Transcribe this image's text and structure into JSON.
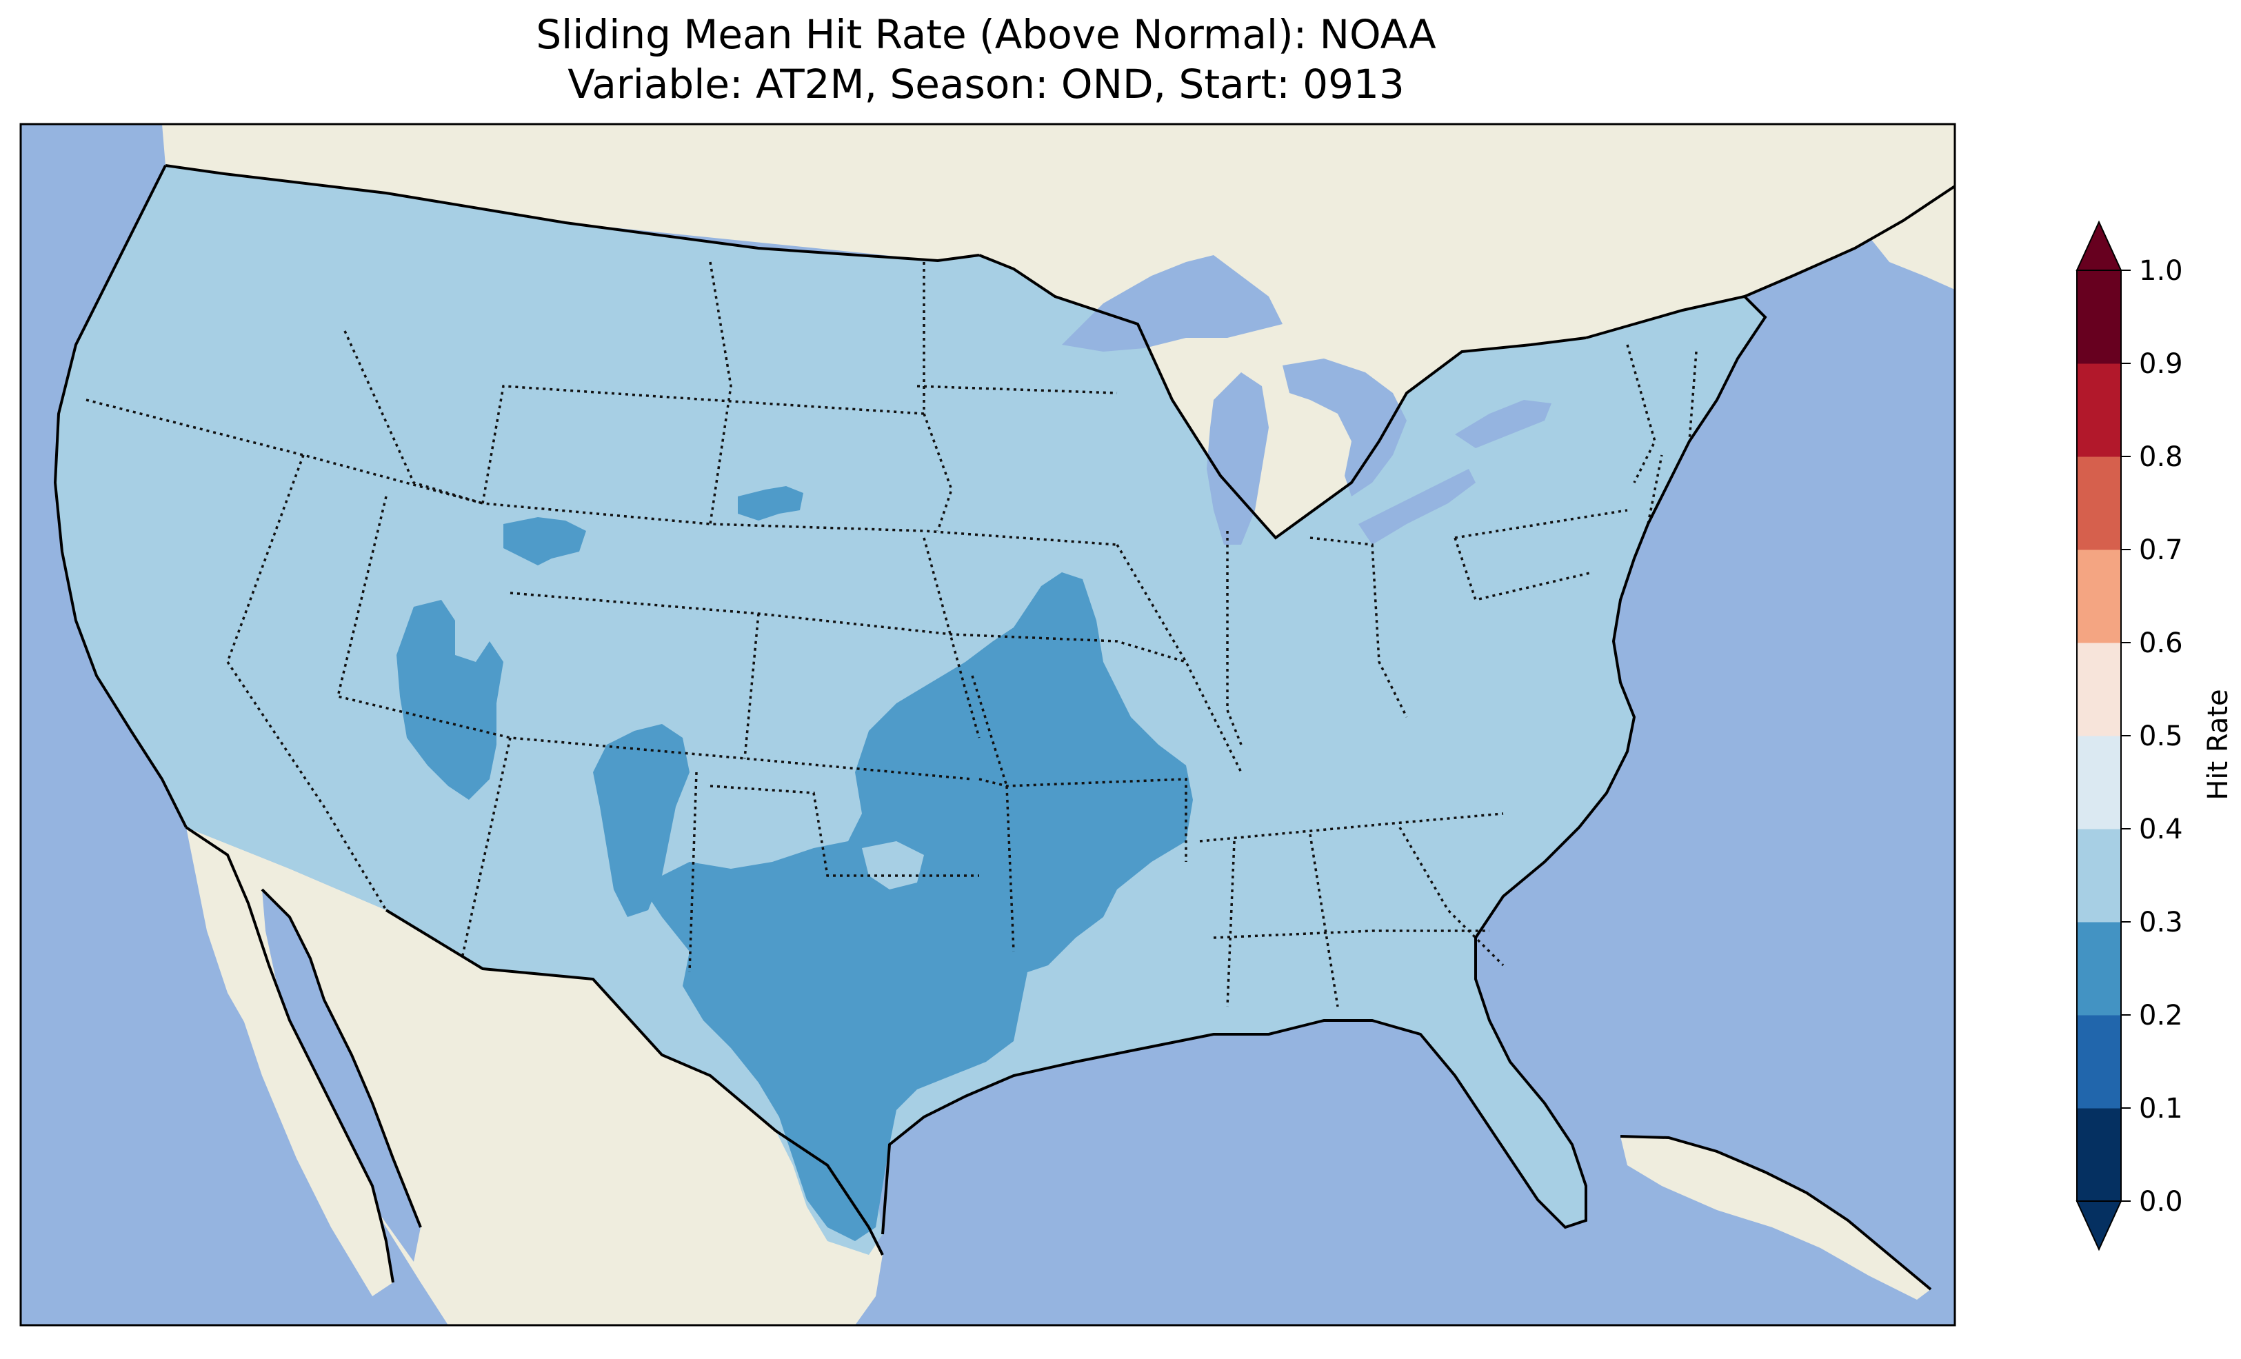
{
  "title": {
    "line1": "Sliding Mean Hit Rate (Above Normal): NOAA",
    "line2": "Variable: AT2M, Season: OND, Start: 0913"
  },
  "colors": {
    "ocean": "#95b4e0",
    "land": "#efedde",
    "lakes": "#95b4e0",
    "bin_0_3_to_0_4": "#a7cfe4",
    "bin_0_2_to_0_3": "#4f9bc9"
  },
  "colorbar": {
    "label": "Hit Rate",
    "ticks": [
      "0.0",
      "0.1",
      "0.2",
      "0.3",
      "0.4",
      "0.5",
      "0.6",
      "0.7",
      "0.8",
      "0.9",
      "1.0"
    ],
    "bins": [
      {
        "range": "0.0-0.1",
        "color": "#053061"
      },
      {
        "range": "0.1-0.2",
        "color": "#2166ac"
      },
      {
        "range": "0.2-0.3",
        "color": "#4393c3"
      },
      {
        "range": "0.3-0.4",
        "color": "#a7cfe4"
      },
      {
        "range": "0.4-0.5",
        "color": "#dbe9f2"
      },
      {
        "range": "0.5-0.6",
        "color": "#f7e4da"
      },
      {
        "range": "0.6-0.7",
        "color": "#f4a582"
      },
      {
        "range": "0.7-0.8",
        "color": "#d6604d"
      },
      {
        "range": "0.8-0.9",
        "color": "#b2182b"
      },
      {
        "range": "0.9-1.0",
        "color": "#67001f"
      }
    ],
    "extend": "both",
    "orientation": "vertical",
    "placement": "right"
  },
  "map": {
    "projection": "Lambert Conformal",
    "domain": "Contiguous United States",
    "dominant_value_range": "0.3-0.4",
    "regions_in_0_2_to_0_3": [
      "Texas and southern Oklahoma",
      "eastern Kansas, Missouri, Arkansas",
      "western Utah",
      "northern New Mexico",
      "south-central Wyoming",
      "southern South Dakota"
    ]
  }
}
